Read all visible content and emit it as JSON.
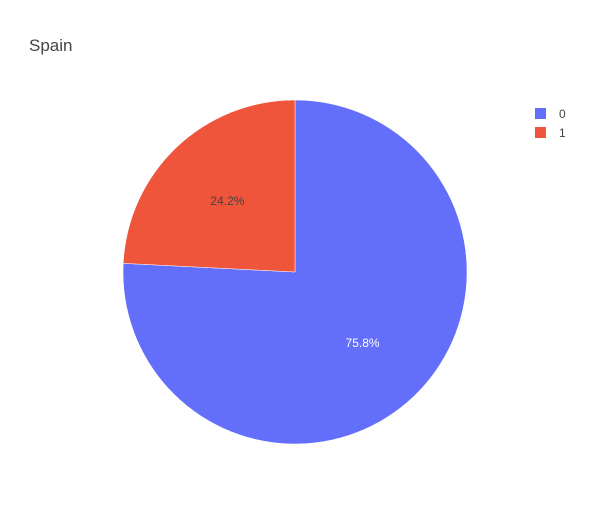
{
  "chart_data": {
    "type": "pie",
    "title": "Spain",
    "labels": [
      "0",
      "1"
    ],
    "values": [
      75.8,
      24.2
    ],
    "percent_labels": [
      "75.8%",
      "24.2%"
    ],
    "colors": [
      "#636efa",
      "#ef553b"
    ],
    "legend": {
      "position": "top-right",
      "entries": [
        "0",
        "1"
      ]
    }
  }
}
